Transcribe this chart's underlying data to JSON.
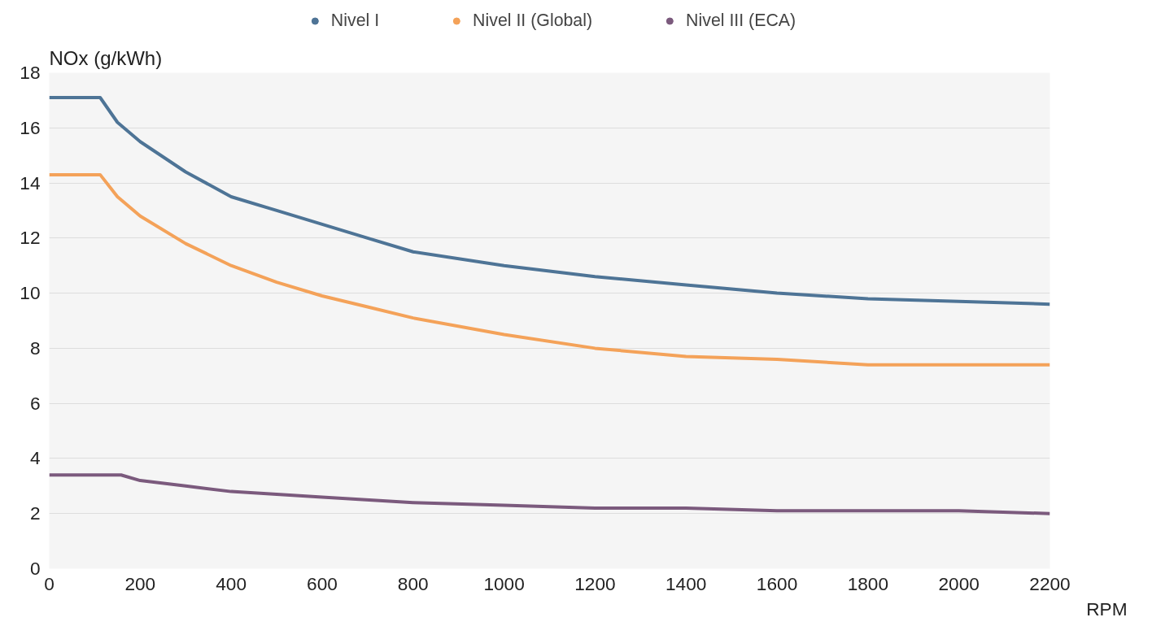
{
  "chart_data": {
    "type": "line",
    "ylabel": "NOx (g/kWh)",
    "xlabel": "RPM",
    "x": [
      0,
      112,
      150,
      200,
      300,
      400,
      500,
      600,
      700,
      800,
      1000,
      1200,
      1400,
      1600,
      1800,
      2000,
      2200
    ],
    "series": [
      {
        "name": "Nivel I",
        "color": "#4e7496",
        "values": [
          17.1,
          17.1,
          16.2,
          15.5,
          14.4,
          13.5,
          13.0,
          12.5,
          12.0,
          11.5,
          11.0,
          10.6,
          10.3,
          10.0,
          9.8,
          9.7,
          9.6
        ]
      },
      {
        "name": "Nivel II (Global)",
        "color": "#f4a259",
        "values": [
          14.3,
          14.3,
          13.5,
          12.8,
          11.8,
          11.0,
          10.4,
          9.9,
          9.5,
          9.1,
          8.5,
          8.0,
          7.7,
          7.6,
          7.4,
          7.4,
          7.4
        ]
      },
      {
        "name": "Nivel III (ECA)",
        "color": "#7b5a7d",
        "x": [
          0,
          158,
          200,
          300,
          400,
          500,
          600,
          800,
          1000,
          1200,
          1400,
          1600,
          1800,
          2000,
          2200
        ],
        "values": [
          3.4,
          3.4,
          3.2,
          3.0,
          2.8,
          2.7,
          2.6,
          2.4,
          2.3,
          2.2,
          2.2,
          2.1,
          2.1,
          2.1,
          2.0
        ]
      }
    ],
    "xlim": [
      0,
      2200
    ],
    "xticks": [
      0,
      200,
      400,
      600,
      800,
      1000,
      1200,
      1400,
      1600,
      1800,
      2000,
      2200
    ],
    "ylim": [
      0,
      18
    ],
    "yticks": [
      0,
      2,
      4,
      6,
      8,
      10,
      12,
      14,
      16,
      18
    ],
    "grid": "y",
    "legend": "top",
    "marker": "none",
    "line_style": "solid"
  }
}
